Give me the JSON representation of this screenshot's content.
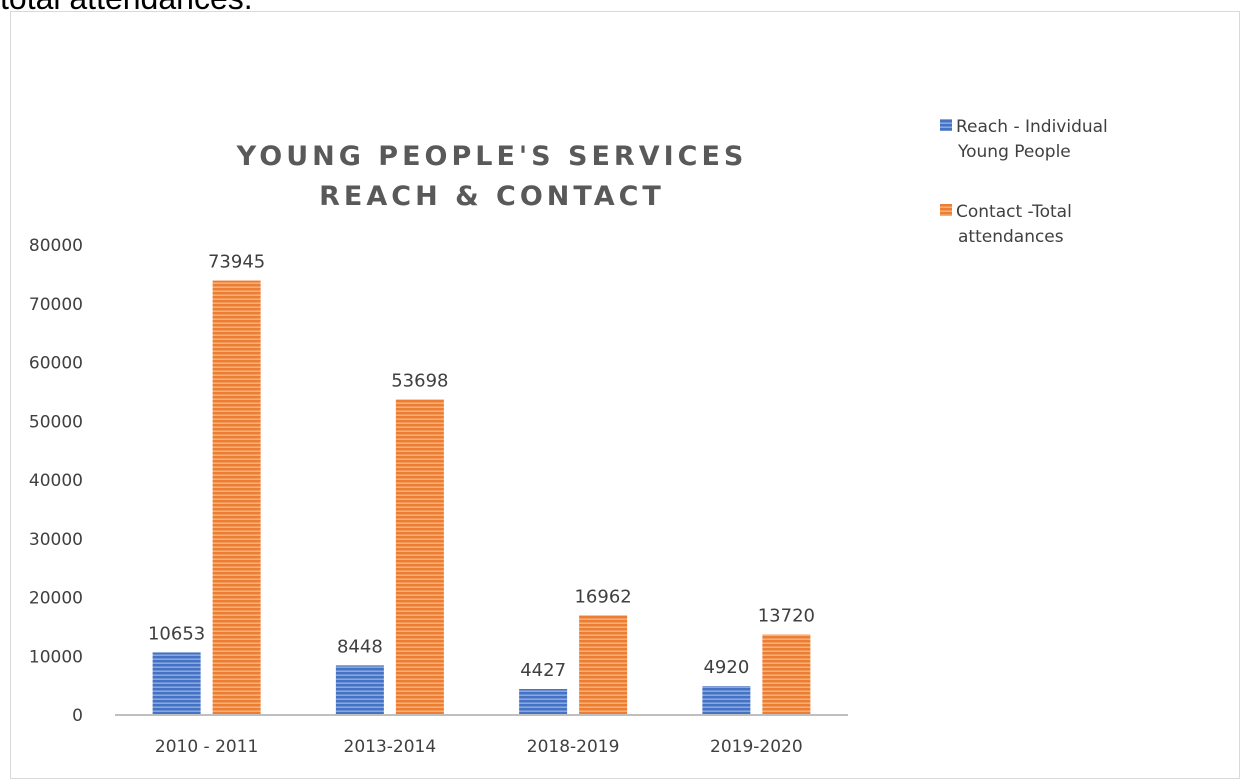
{
  "page": {
    "top_text": "total attendances."
  },
  "chart_data": {
    "type": "bar",
    "title_lines": [
      "YOUNG PEOPLE'S SERVICES",
      "REACH & CONTACT"
    ],
    "categories": [
      "2010 - 2011",
      "2013-2014",
      "2018-2019",
      "2019-2020"
    ],
    "series": [
      {
        "name_lines": [
          "Reach - Individual",
          "Young People"
        ],
        "values": [
          10653,
          8448,
          4427,
          4920
        ],
        "color": "#4472C4"
      },
      {
        "name_lines": [
          "Contact -Total",
          "attendances"
        ],
        "values": [
          73945,
          53698,
          16962,
          13720
        ],
        "color": "#ED7D31"
      }
    ],
    "yticks": [
      "0",
      "10000",
      "20000",
      "30000",
      "40000",
      "50000",
      "60000",
      "70000",
      "80000"
    ],
    "ylim": [
      0,
      80000
    ],
    "grid": false,
    "legend": "right",
    "data_labels": true,
    "bar_pattern": "horizontal-stripes"
  }
}
